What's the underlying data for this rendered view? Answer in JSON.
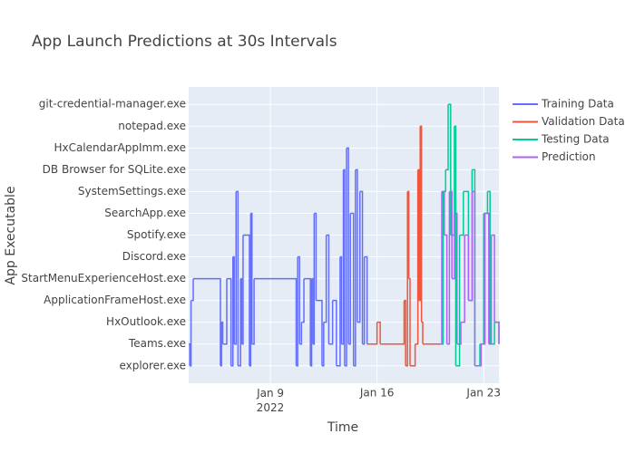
{
  "chart_data": {
    "type": "line",
    "line_shape": "hv",
    "title": "App Launch Predictions at 30s Intervals",
    "x_label": "Time",
    "y_label": "App Executable",
    "ycategories": [
      "explorer.exe",
      "Teams.exe",
      "HxOutlook.exe",
      "ApplicationFrameHost.exe",
      "StartMenuExperienceHost.exe",
      "Discord.exe",
      "Spotify.exe",
      "SearchApp.exe",
      "SystemSettings.exe",
      "DB Browser for SQLite.exe",
      "HxCalendarAppImm.exe",
      "notepad.exe",
      "git-credential-manager.exe"
    ],
    "xlim": [
      "2022-01-03T15:20",
      "2022-01-24T00:00"
    ],
    "xticks": [
      {
        "value": "2022-01-09T00:00",
        "label": "Jan 9\n2022"
      },
      {
        "value": "2022-01-16T00:00",
        "label": "Jan 16"
      },
      {
        "value": "2022-01-23T00:00",
        "label": "Jan 23"
      }
    ],
    "grid": true,
    "legend": "right",
    "series": [
      {
        "name": "Training Data",
        "color": "#636efa",
        "x": [
          "2022-01-03T15:20",
          "2022-01-03T17:00",
          "2022-01-03T19:00",
          "2022-01-03T22:30",
          "2022-01-05T17:20",
          "2022-01-05T19:00",
          "2022-01-05T21:00",
          "2022-01-06T03:20",
          "2022-01-06T10:00",
          "2022-01-06T13:00",
          "2022-01-06T15:00",
          "2022-01-06T18:00",
          "2022-01-06T21:00",
          "2022-01-07T01:00",
          "2022-01-07T03:00",
          "2022-01-07T05:00",
          "2022-01-07T15:00",
          "2022-01-07T17:00",
          "2022-01-07T19:00",
          "2022-01-07T22:20",
          "2022-01-10T16:40",
          "2022-01-10T19:00",
          "2022-01-10T22:00",
          "2022-01-11T01:00",
          "2022-01-11T04:50",
          "2022-01-11T15:00",
          "2022-01-11T17:00",
          "2022-01-11T19:00",
          "2022-01-11T21:00",
          "2022-01-12T00:00",
          "2022-01-12T09:20",
          "2022-01-12T12:00",
          "2022-01-12T16:00",
          "2022-01-12T20:00",
          "2022-01-13T02:00",
          "2022-01-13T08:00",
          "2022-01-13T13:50",
          "2022-01-13T16:00",
          "2022-01-13T19:00",
          "2022-01-13T21:00",
          "2022-01-14T00:00",
          "2022-01-14T03:00",
          "2022-01-14T06:00",
          "2022-01-14T11:00",
          "2022-01-14T14:00",
          "2022-01-14T17:00",
          "2022-01-14T21:00",
          "2022-01-15T01:00",
          "2022-01-15T04:00",
          "2022-01-15T08:20"
        ],
        "values": [
          "Teams.exe",
          "explorer.exe",
          "ApplicationFrameHost.exe",
          "StartMenuExperienceHost.exe",
          "explorer.exe",
          "HxOutlook.exe",
          "Teams.exe",
          "StartMenuExperienceHost.exe",
          "explorer.exe",
          "Discord.exe",
          "Teams.exe",
          "SystemSettings.exe",
          "explorer.exe",
          "StartMenuExperienceHost.exe",
          "Teams.exe",
          "Spotify.exe",
          "explorer.exe",
          "SearchApp.exe",
          "Teams.exe",
          "StartMenuExperienceHost.exe",
          "explorer.exe",
          "Discord.exe",
          "Teams.exe",
          "HxOutlook.exe",
          "StartMenuExperienceHost.exe",
          "explorer.exe",
          "StartMenuExperienceHost.exe",
          "Teams.exe",
          "SearchApp.exe",
          "ApplicationFrameHost.exe",
          "explorer.exe",
          "HxOutlook.exe",
          "Spotify.exe",
          "Teams.exe",
          "ApplicationFrameHost.exe",
          "explorer.exe",
          "Discord.exe",
          "Teams.exe",
          "DB Browser for SQLite.exe",
          "explorer.exe",
          "HxCalendarAppImm.exe",
          "Teams.exe",
          "SearchApp.exe",
          "explorer.exe",
          "DB Browser for SQLite.exe",
          "HxOutlook.exe",
          "SystemSettings.exe",
          "Teams.exe",
          "Discord.exe",
          "Teams.exe"
        ]
      },
      {
        "name": "Validation Data",
        "color": "#EF553B",
        "x": [
          "2022-01-15T08:20",
          "2022-01-16T00:00",
          "2022-01-16T05:00",
          "2022-01-17T18:40",
          "2022-01-17T21:00",
          "2022-01-18T00:00",
          "2022-01-18T02:00",
          "2022-01-18T04:00",
          "2022-01-18T12:00",
          "2022-01-18T16:20",
          "2022-01-18T18:00",
          "2022-01-18T20:00",
          "2022-01-18T22:00",
          "2022-01-19T00:00",
          "2022-01-20T04:30"
        ],
        "values": [
          "Teams.exe",
          "HxOutlook.exe",
          "Teams.exe",
          "ApplicationFrameHost.exe",
          "explorer.exe",
          "SystemSettings.exe",
          "StartMenuExperienceHost.exe",
          "explorer.exe",
          "Teams.exe",
          "DB Browser for SQLite.exe",
          "ApplicationFrameHost.exe",
          "notepad.exe",
          "HxOutlook.exe",
          "Teams.exe",
          "Teams.exe"
        ]
      },
      {
        "name": "Testing Data",
        "color": "#00cc96",
        "x": [
          "2022-01-20T04:30",
          "2022-01-20T08:00",
          "2022-01-20T12:00",
          "2022-01-20T16:00",
          "2022-01-20T20:00",
          "2022-01-21T01:50",
          "2022-01-21T04:00",
          "2022-01-21T10:00",
          "2022-01-21T16:00",
          "2022-01-22T00:00",
          "2022-01-22T05:40",
          "2022-01-22T10:00",
          "2022-01-22T18:00",
          "2022-01-23T00:00",
          "2022-01-23T06:00",
          "2022-01-23T10:00",
          "2022-01-23T17:00",
          "2022-01-24T00:00"
        ],
        "values": [
          "Teams.exe",
          "SystemSettings.exe",
          "DB Browser for SQLite.exe",
          "git-credential-manager.exe",
          "Spotify.exe",
          "notepad.exe",
          "explorer.exe",
          "Spotify.exe",
          "SystemSettings.exe",
          "ApplicationFrameHost.exe",
          "DB Browser for SQLite.exe",
          "explorer.exe",
          "Teams.exe",
          "SearchApp.exe",
          "SystemSettings.exe",
          "Teams.exe",
          "HxOutlook.exe",
          "Teams.exe"
        ]
      },
      {
        "name": "Prediction",
        "color": "#ab63fa",
        "x": [
          "2022-01-20T04:30",
          "2022-01-20T06:00",
          "2022-01-20T10:00",
          "2022-01-20T14:00",
          "2022-01-20T18:00",
          "2022-01-20T22:00",
          "2022-01-21T02:00",
          "2022-01-21T06:00",
          "2022-01-21T12:00",
          "2022-01-21T18:00",
          "2022-01-22T00:00",
          "2022-01-22T06:00",
          "2022-01-22T10:00",
          "2022-01-22T20:00",
          "2022-01-23T02:00",
          "2022-01-23T08:00",
          "2022-01-23T12:00",
          "2022-01-23T17:00",
          "2022-01-24T00:00"
        ],
        "values": [
          "Teams.exe",
          "SystemSettings.exe",
          "Spotify.exe",
          "Teams.exe",
          "SystemSettings.exe",
          "StartMenuExperienceHost.exe",
          "SearchApp.exe",
          "Teams.exe",
          "HxOutlook.exe",
          "Spotify.exe",
          "ApplicationFrameHost.exe",
          "SystemSettings.exe",
          "explorer.exe",
          "Teams.exe",
          "SearchApp.exe",
          "Teams.exe",
          "Spotify.exe",
          "HxOutlook.exe",
          "Teams.exe"
        ]
      }
    ]
  }
}
